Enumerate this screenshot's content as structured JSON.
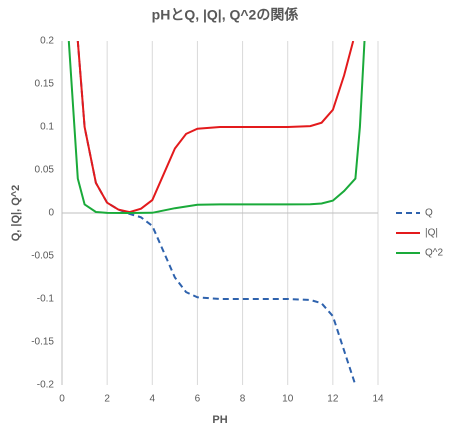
{
  "chart_data": {
    "type": "line",
    "title": "pHとQ, |Q|, Q^2の関係",
    "x_label": "PH",
    "y_label": "Q, |Q|, Q^2",
    "xlim": [
      0,
      14
    ],
    "xticks": [
      0,
      2,
      4,
      6,
      8,
      10,
      12,
      14
    ],
    "ylim": [
      -0.2,
      0.2
    ],
    "yticks": [
      0.2,
      0.15,
      0.1,
      0.05,
      0,
      -0.05,
      -0.1,
      -0.15,
      -0.2
    ],
    "grid": "x",
    "legend": "right",
    "series": [
      {
        "name": "Q",
        "color": "#2e62ad",
        "dash": true,
        "x": [
          0.7,
          1,
          1.5,
          2,
          2.5,
          3,
          3.5,
          4,
          4.5,
          5,
          5.5,
          6,
          7,
          8,
          9,
          10,
          11,
          11.5,
          12,
          12.5,
          13
        ],
        "values": [
          0.2,
          0.1,
          0.035,
          0.012,
          0.004,
          -0.001,
          -0.005,
          -0.015,
          -0.045,
          -0.075,
          -0.092,
          -0.098,
          -0.1,
          -0.1,
          -0.1,
          -0.1,
          -0.101,
          -0.105,
          -0.12,
          -0.16,
          -0.2
        ]
      },
      {
        "name": "|Q|",
        "color": "#e31a1c",
        "dash": false,
        "x": [
          0.7,
          1,
          1.5,
          2,
          2.5,
          3,
          3.5,
          4,
          4.5,
          5,
          5.5,
          6,
          7,
          8,
          9,
          10,
          11,
          11.5,
          12,
          12.5,
          12.9
        ],
        "values": [
          0.2,
          0.1,
          0.035,
          0.012,
          0.004,
          0.001,
          0.005,
          0.015,
          0.045,
          0.075,
          0.092,
          0.098,
          0.1,
          0.1,
          0.1,
          0.1,
          0.101,
          0.105,
          0.12,
          0.16,
          0.2
        ]
      },
      {
        "name": "Q^2",
        "color": "#1aaa3a",
        "dash": false,
        "x": [
          0.3,
          0.5,
          0.7,
          1,
          1.5,
          2,
          3,
          4,
          5,
          6,
          7,
          8,
          9,
          10,
          11,
          11.5,
          12,
          12.5,
          13,
          13.2,
          13.4
        ],
        "values": [
          0.2,
          0.12,
          0.04,
          0.01,
          0.0012,
          0.0001,
          0,
          0.0002,
          0.0056,
          0.0096,
          0.01,
          0.01,
          0.01,
          0.01,
          0.0102,
          0.011,
          0.0144,
          0.0256,
          0.04,
          0.1,
          0.2
        ]
      }
    ]
  }
}
